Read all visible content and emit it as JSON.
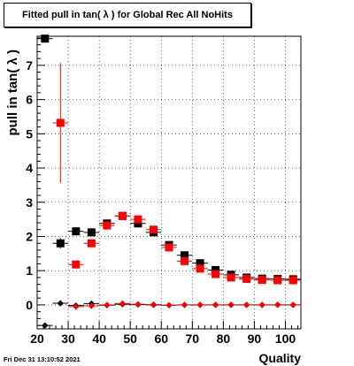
{
  "title": "Fitted pull in tan( λ ) for Global Rec All NoHits",
  "timestamp": "Fri Dec 31 13:10:52 2021",
  "colors": {
    "black_series": "#000000",
    "red_series": "#ff0000",
    "background": "#ffffff"
  },
  "chart_data": {
    "type": "scatter",
    "title": "Fitted pull in tan( λ ) for Global Rec All NoHits",
    "xlabel": "Quality",
    "ylabel": "pull in tan( λ )",
    "xlim": [
      20,
      105
    ],
    "ylim": [
      -0.7,
      7.85
    ],
    "xticks": [
      20,
      30,
      40,
      50,
      60,
      70,
      80,
      90,
      100
    ],
    "yticks": [
      0,
      1,
      2,
      3,
      4,
      5,
      6,
      7
    ],
    "grid": true,
    "series": [
      {
        "marker": "square",
        "color": "#000000",
        "x": [
          22.5,
          27.5,
          32.5,
          37.5,
          42.5,
          47.5,
          52.5,
          57.5,
          62.5,
          67.5,
          72.5,
          77.5,
          82.5,
          87.5,
          92.5,
          97.5,
          102.5
        ],
        "y": [
          7.78,
          1.8,
          2.15,
          2.12,
          2.38,
          2.6,
          2.38,
          2.12,
          1.75,
          1.45,
          1.22,
          1.02,
          0.88,
          0.8,
          0.77,
          0.76,
          0.75
        ],
        "yerr": [
          0,
          0.15,
          0.1,
          0.08,
          0.06,
          0.05,
          0.05,
          0.05,
          0.05,
          0.05,
          0.04,
          0.04,
          0.03,
          0.03,
          0.03,
          0.03,
          0.03
        ]
      },
      {
        "marker": "square",
        "color": "#ff0000",
        "x": [
          27.5,
          32.5,
          37.5,
          42.5,
          47.5,
          52.5,
          57.5,
          62.5,
          67.5,
          72.5,
          77.5,
          82.5,
          87.5,
          92.5,
          97.5,
          102.5
        ],
        "y": [
          5.32,
          1.18,
          1.8,
          2.32,
          2.6,
          2.5,
          2.2,
          1.68,
          1.28,
          1.06,
          0.9,
          0.8,
          0.76,
          0.73,
          0.72,
          0.72
        ],
        "yerr": [
          1.75,
          0.1,
          0.08,
          0.06,
          0.05,
          0.05,
          0.05,
          0.04,
          0.04,
          0.04,
          0.03,
          0.03,
          0.03,
          0.03,
          0.03,
          0.03
        ]
      },
      {
        "marker": "diamond",
        "color": "#000000",
        "x": [
          22.5,
          27.5,
          32.5,
          37.5,
          42.5,
          47.5,
          52.5,
          57.5,
          62.5,
          67.5,
          72.5,
          77.5,
          82.5,
          87.5,
          92.5,
          97.5,
          102.5
        ],
        "y": [
          -0.6,
          0.05,
          -0.02,
          0.04,
          -0.01,
          0.02,
          0.01,
          0.0,
          -0.01,
          0.0,
          0.0,
          0.0,
          0.0,
          0.0,
          0.0,
          0.0,
          0.0
        ],
        "yerr": [
          0.05,
          0.06,
          0.04,
          0.03,
          0.03,
          0.02,
          0.02,
          0.02,
          0.02,
          0.02,
          0.02,
          0.01,
          0.01,
          0.01,
          0.01,
          0.01,
          0.01
        ]
      },
      {
        "marker": "diamond",
        "color": "#ff0000",
        "x": [
          32.5,
          37.5,
          42.5,
          47.5,
          52.5,
          57.5,
          62.5,
          67.5,
          72.5,
          77.5,
          82.5,
          87.5,
          92.5,
          97.5,
          102.5
        ],
        "y": [
          -0.05,
          -0.03,
          0.0,
          0.04,
          0.02,
          0.01,
          -0.01,
          0.0,
          0.0,
          0.0,
          0.0,
          0.0,
          0.0,
          0.0,
          0.0
        ],
        "yerr": [
          0.04,
          0.03,
          0.03,
          0.02,
          0.02,
          0.02,
          0.02,
          0.01,
          0.01,
          0.01,
          0.01,
          0.01,
          0.01,
          0.01,
          0.01
        ]
      }
    ]
  }
}
